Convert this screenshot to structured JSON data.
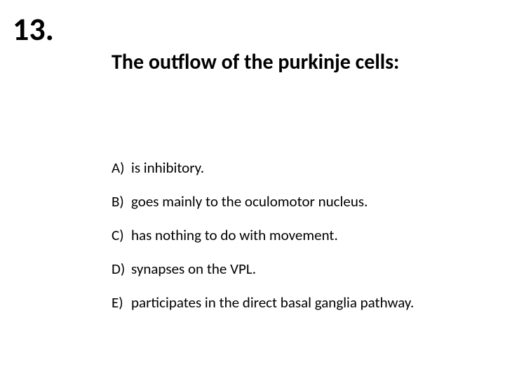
{
  "question_number": "13.",
  "stem": "The outflow of the purkinje cells:",
  "options": [
    {
      "marker": "A)",
      "text": "is inhibitory."
    },
    {
      "marker": "B)",
      "text": "goes mainly to the oculomotor nucleus."
    },
    {
      "marker": "C)",
      "text": "has nothing to do with movement."
    },
    {
      "marker": "D)",
      "text": "synapses on the VPL."
    },
    {
      "marker": "E)",
      "text": "participates in the direct basal ganglia pathway."
    }
  ],
  "colors": {
    "background": "#ffffff",
    "text": "#000000"
  },
  "typography": {
    "qnum_fontsize": 46,
    "stem_fontsize": 30,
    "option_fontsize": 21,
    "font_family": "Calibri"
  }
}
